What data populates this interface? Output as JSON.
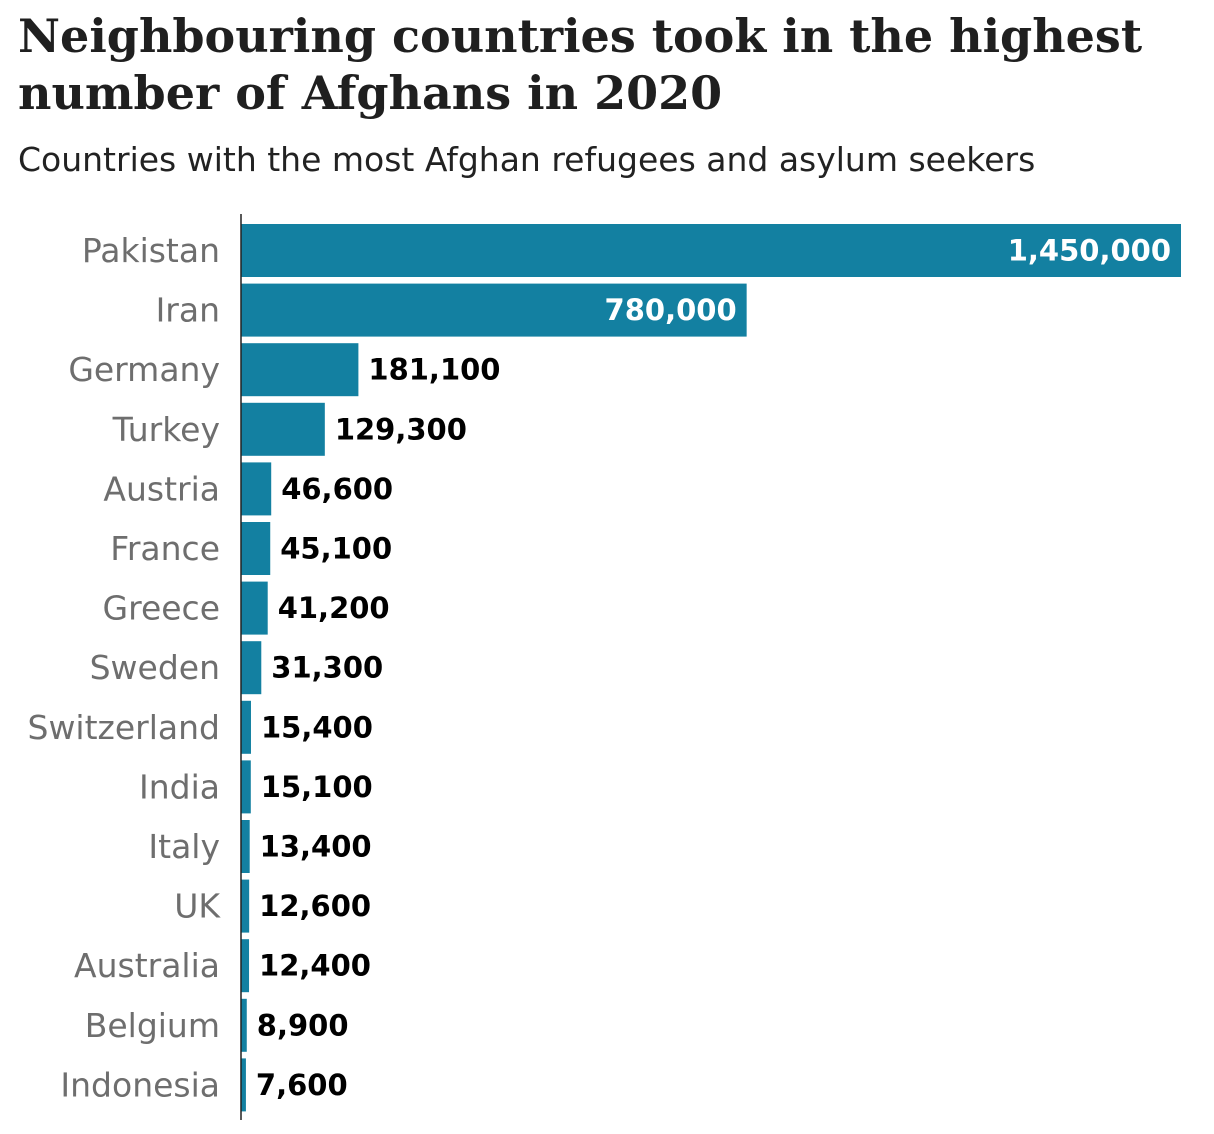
{
  "title": "Neighbouring countries took in the highest number of Afghans in 2020",
  "subtitle": "Countries with the most Afghan refugees and asylum seekers",
  "colors": {
    "bar": "#1380a1",
    "axis": "#222222",
    "label_inside": "#ffffff",
    "label_outside": "#000000"
  },
  "chart_data": {
    "type": "bar",
    "orientation": "horizontal",
    "categories": [
      "Pakistan",
      "Iran",
      "Germany",
      "Turkey",
      "Austria",
      "France",
      "Greece",
      "Sweden",
      "Switzerland",
      "India",
      "Italy",
      "UK",
      "Australia",
      "Belgium",
      "Indonesia"
    ],
    "values": [
      1450000,
      780000,
      181100,
      129300,
      46600,
      45100,
      41200,
      31300,
      15400,
      15100,
      13400,
      12600,
      12400,
      8900,
      7600
    ],
    "value_labels": [
      "1,450,000",
      "780,000",
      "181,100",
      "129,300",
      "46,600",
      "45,100",
      "41,200",
      "31,300",
      "15,400",
      "15,100",
      "13,400",
      "12,600",
      "12,400",
      "8,900",
      "7,600"
    ],
    "xlim": [
      0,
      1450000
    ],
    "grid": false,
    "legend": "none"
  }
}
